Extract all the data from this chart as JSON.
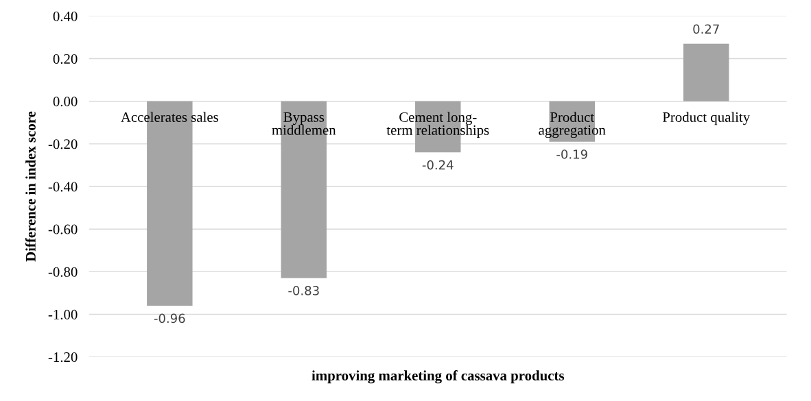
{
  "chart_data": {
    "type": "bar",
    "xlabel": "improving marketing of cassava products",
    "ylabel": "Difference in index score",
    "categories": [
      "Accelerates sales",
      "Bypass\nmiddlemen",
      "Cement long-\nterm relationships",
      "Product\naggregation",
      "Product quality"
    ],
    "values": [
      -0.96,
      -0.83,
      -0.24,
      -0.19,
      0.27
    ],
    "color": "#a5a5a5",
    "ylim": [
      -1.2,
      0.4
    ],
    "yticks": [
      {
        "value": -1.2,
        "label": "-1.20"
      },
      {
        "value": -1.0,
        "label": "-1.00"
      },
      {
        "value": -0.8,
        "label": "-0.80"
      },
      {
        "value": -0.6,
        "label": "-0.60"
      },
      {
        "value": -0.4,
        "label": "-0.40"
      },
      {
        "value": -0.2,
        "label": "-0.20"
      },
      {
        "value": 0,
        "label": "0.00"
      },
      {
        "value": 0.2,
        "label": "0.20"
      },
      {
        "value": 0.4,
        "label": "0.40"
      }
    ],
    "grid": "y",
    "data_labels": true
  }
}
